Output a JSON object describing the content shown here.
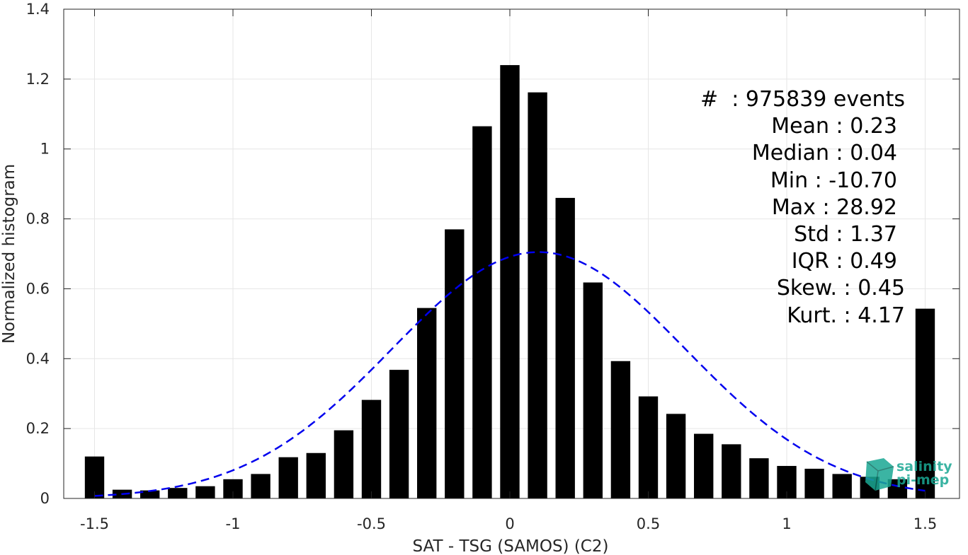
{
  "chart_data": {
    "type": "bar",
    "xlabel": "SAT - TSG (SAMOS) (C2)",
    "ylabel": "Normalized histogram",
    "xlim": [
      -1.6,
      1.6
    ],
    "ylim": [
      0,
      1.4
    ],
    "xticks": [
      "-1.5",
      "-1",
      "-0.5",
      "0",
      "0.5",
      "1",
      "1.5"
    ],
    "xtick_values": [
      -1.5,
      -1,
      -0.5,
      0,
      0.5,
      1,
      1.5
    ],
    "yticks": [
      "0",
      "0.2",
      "0.4",
      "0.6",
      "0.8",
      "1",
      "1.2",
      "1.4"
    ],
    "ytick_values": [
      0,
      0.2,
      0.4,
      0.6,
      0.8,
      1,
      1.2,
      1.4
    ],
    "grid": true,
    "bar_color": "#000000",
    "fit_color": "#0000ee",
    "bins": {
      "centers": [
        -1.5,
        -1.4,
        -1.3,
        -1.2,
        -1.1,
        -1.0,
        -0.9,
        -0.8,
        -0.7,
        -0.6,
        -0.5,
        -0.4,
        -0.3,
        -0.2,
        -0.1,
        0.0,
        0.1,
        0.2,
        0.3,
        0.4,
        0.5,
        0.6,
        0.7,
        0.8,
        0.9,
        1.0,
        1.1,
        1.2,
        1.3,
        1.4,
        1.5
      ],
      "values": [
        0.12,
        0.025,
        0.023,
        0.03,
        0.035,
        0.055,
        0.07,
        0.118,
        0.13,
        0.195,
        0.282,
        0.368,
        0.545,
        0.77,
        1.065,
        1.24,
        1.162,
        0.86,
        0.618,
        0.393,
        0.292,
        0.242,
        0.185,
        0.155,
        0.115,
        0.093,
        0.085,
        0.07,
        0.062,
        0.055,
        0.543
      ]
    },
    "fit": {
      "mean": 0.104,
      "std": 0.53,
      "peak": 0.705,
      "x_range": [
        -1.5,
        1.5
      ]
    }
  },
  "stats": [
    "#  : 975839 events",
    "Mean : 0.23",
    "Median : 0.04",
    "Min : -10.70",
    "Max : 28.92",
    "Std : 1.37",
    "IQR : 0.49",
    "Skew. : 0.45",
    "Kurt. : 4.17"
  ],
  "logo": {
    "line1": "salinity",
    "line2": "pi-mep",
    "color": "#1aa894"
  }
}
